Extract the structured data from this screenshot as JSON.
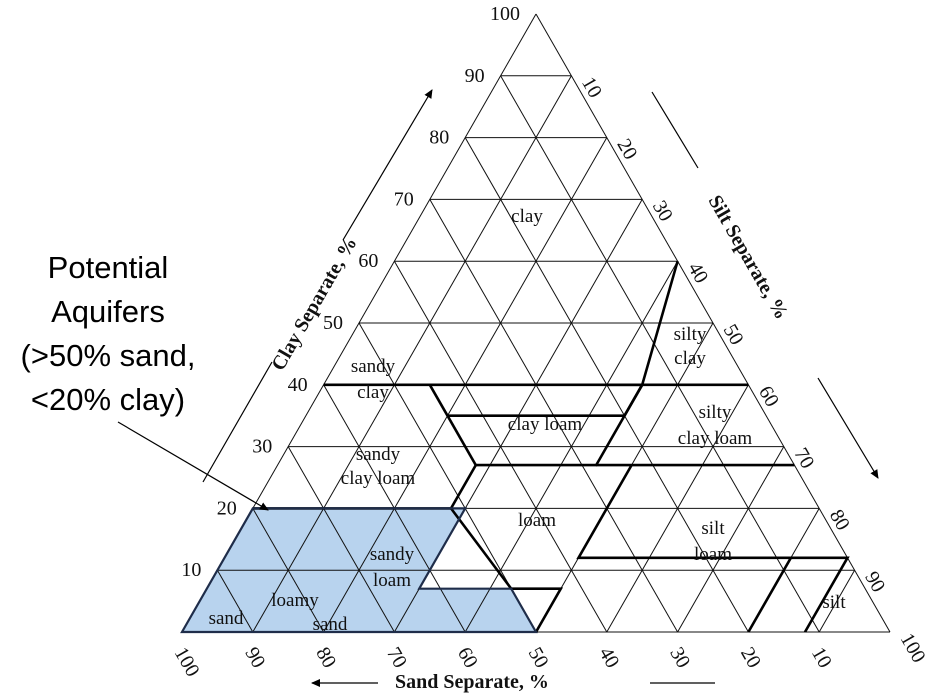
{
  "callout": {
    "lines": [
      "Potential",
      "Aquifers",
      "(>50% sand,",
      "<20% clay)"
    ]
  },
  "axes": {
    "clay": {
      "title": "Clay Separate, %",
      "ticks": [
        "10",
        "20",
        "30",
        "40",
        "50",
        "60",
        "70",
        "80",
        "90",
        "100"
      ]
    },
    "silt": {
      "title": "Silt Separate, %",
      "ticks": [
        "10",
        "20",
        "30",
        "40",
        "50",
        "60",
        "70",
        "80",
        "90",
        "100"
      ]
    },
    "sand": {
      "title": "Sand Separate, %",
      "ticks": [
        "100",
        "90",
        "80",
        "70",
        "60",
        "50",
        "40",
        "30",
        "20",
        "10"
      ]
    }
  },
  "regions": [
    {
      "name": "clay",
      "lines": [
        "clay"
      ]
    },
    {
      "name": "sandy-clay",
      "lines": [
        "sandy",
        "clay"
      ]
    },
    {
      "name": "silty-clay",
      "lines": [
        "silty",
        "clay"
      ]
    },
    {
      "name": "sandy-clay-loam",
      "lines": [
        "sandy",
        "clay loam"
      ]
    },
    {
      "name": "clay-loam",
      "lines": [
        "clay loam"
      ]
    },
    {
      "name": "silty-clay-loam",
      "lines": [
        "silty",
        "clay loam"
      ]
    },
    {
      "name": "loam",
      "lines": [
        "loam"
      ]
    },
    {
      "name": "silt-loam",
      "lines": [
        "silt",
        "loam"
      ]
    },
    {
      "name": "sandy-loam",
      "lines": [
        "sandy",
        "loam"
      ]
    },
    {
      "name": "loamy-sand",
      "lines": [
        "loamy",
        "sand"
      ]
    },
    {
      "name": "sand",
      "lines": [
        "sand"
      ]
    },
    {
      "name": "silt",
      "lines": [
        "silt"
      ]
    }
  ],
  "highlight": {
    "color": "#b8d3ee",
    "meaning": ">50% sand, <20% clay"
  }
}
